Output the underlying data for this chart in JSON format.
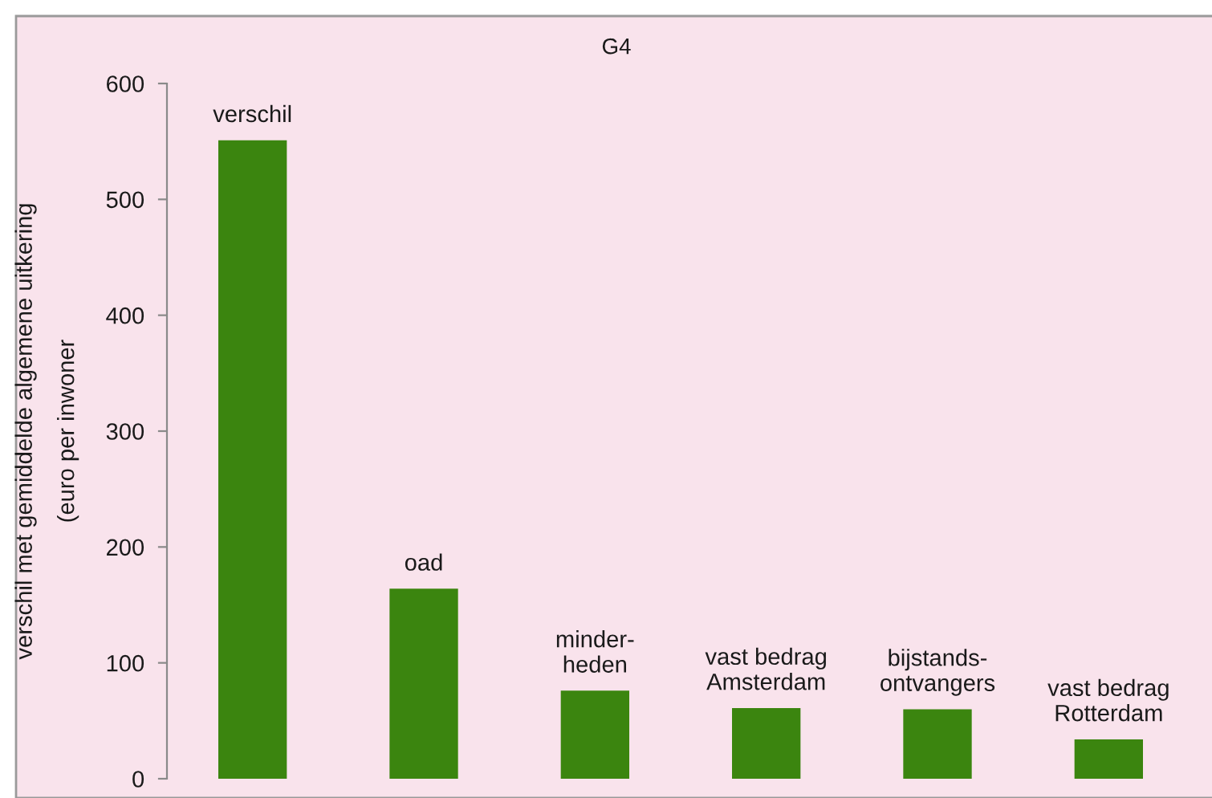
{
  "chart_data": {
    "type": "bar",
    "title": "G4",
    "ylabel": "verschil met gemiddelde algemene uitkering\n(euro per inwoner",
    "categories": [
      "verschil",
      "oad",
      "minder-\nheden",
      "vast bedrag\nAmsterdam",
      "bijstands-\nontvangers",
      "vast bedrag\nRotterdam"
    ],
    "values": [
      551,
      164,
      76,
      61,
      60,
      34
    ],
    "color": "#3b850f",
    "ylim": [
      0,
      600
    ],
    "yticks": [
      0,
      100,
      200,
      300,
      400,
      500,
      600
    ],
    "grid": false
  }
}
